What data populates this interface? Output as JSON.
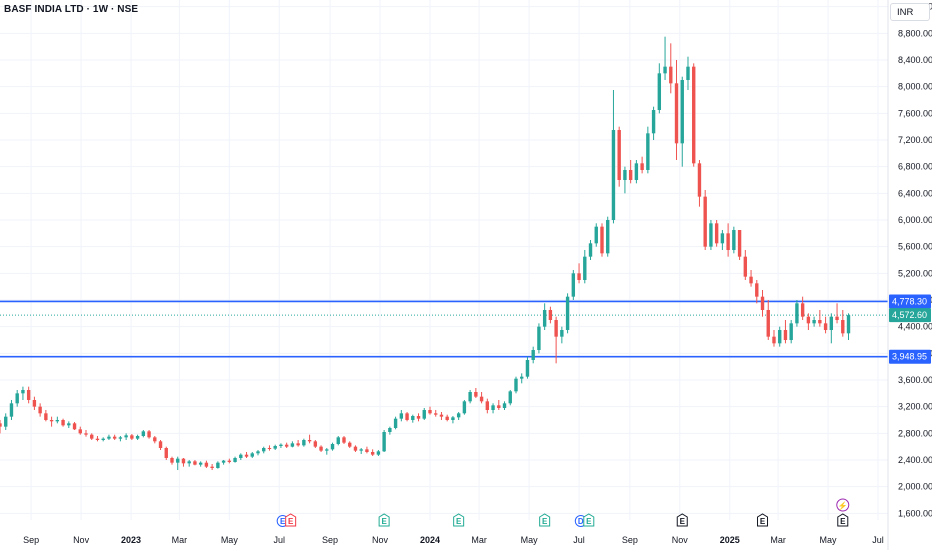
{
  "header": {
    "title": "BASF INDIA LTD · 1W · NSE",
    "currency": "INR"
  },
  "colors": {
    "up": "#26a69a",
    "down": "#ef5350",
    "hline": "#2962ff",
    "current": "#26a69a",
    "grid": "#f0f3fa",
    "text": "#131722"
  },
  "chart_data": {
    "type": "candlestick",
    "title": "BASF INDIA LTD · 1W · NSE",
    "ylim": [
      1500,
      9300
    ],
    "y_ticks": [
      "1,600.00",
      "2,000.00",
      "2,400.00",
      "2,800.00",
      "3,200.00",
      "3,600.00",
      "4,000.00",
      "4,400.00",
      "4,800.00",
      "5,200.00",
      "5,600.00",
      "6,000.00",
      "6,400.00",
      "6,800.00",
      "7,200.00",
      "7,600.00",
      "8,000.00",
      "8,400.00",
      "8,800.00",
      "9,200.00"
    ],
    "x_ticks": [
      {
        "label": "Sep",
        "date": "2022-09-01",
        "bold": false
      },
      {
        "label": "Nov",
        "date": "2022-11-01",
        "bold": false
      },
      {
        "label": "2023",
        "date": "2023-01-01",
        "bold": true
      },
      {
        "label": "Mar",
        "date": "2023-03-01",
        "bold": false
      },
      {
        "label": "May",
        "date": "2023-05-01",
        "bold": false
      },
      {
        "label": "Jul",
        "date": "2023-07-01",
        "bold": false
      },
      {
        "label": "Sep",
        "date": "2023-09-01",
        "bold": false
      },
      {
        "label": "Nov",
        "date": "2023-11-01",
        "bold": false
      },
      {
        "label": "2024",
        "date": "2024-01-01",
        "bold": true
      },
      {
        "label": "Mar",
        "date": "2024-03-01",
        "bold": false
      },
      {
        "label": "May",
        "date": "2024-05-01",
        "bold": false
      },
      {
        "label": "Jul",
        "date": "2024-07-01",
        "bold": false
      },
      {
        "label": "Sep",
        "date": "2024-09-01",
        "bold": false
      },
      {
        "label": "Nov",
        "date": "2024-11-01",
        "bold": false
      },
      {
        "label": "2025",
        "date": "2025-01-01",
        "bold": true
      },
      {
        "label": "Mar",
        "date": "2025-03-01",
        "bold": false
      },
      {
        "label": "May",
        "date": "2025-05-01",
        "bold": false
      },
      {
        "label": "Jul",
        "date": "2025-07-01",
        "bold": false
      }
    ],
    "horizontal_lines": [
      {
        "value": 4778.3,
        "label": "4,778.30"
      },
      {
        "value": 3948.95,
        "label": "3,948.95"
      }
    ],
    "current_price": {
      "value": 4572.6,
      "label": "4,572.60"
    },
    "events": [
      {
        "date": "2023-07-10",
        "symbols": [
          "E",
          "E"
        ],
        "type": "earnings"
      },
      {
        "date": "2023-11-06",
        "symbols": [
          "E"
        ],
        "type": "earnings"
      },
      {
        "date": "2024-02-05",
        "symbols": [
          "E"
        ],
        "type": "earnings"
      },
      {
        "date": "2024-05-20",
        "symbols": [
          "E"
        ],
        "type": "earnings"
      },
      {
        "date": "2024-07-08",
        "symbols": [
          "D",
          "E"
        ],
        "type": "dividend-earnings"
      },
      {
        "date": "2024-11-04",
        "symbols": [
          "E"
        ],
        "type": "earnings"
      },
      {
        "date": "2025-02-10",
        "symbols": [
          "E"
        ],
        "type": "earnings"
      },
      {
        "date": "2025-05-19",
        "symbols": [
          "E"
        ],
        "type": "earnings"
      },
      {
        "date": "2025-05-19",
        "symbols": [
          "⚡"
        ],
        "type": "split"
      }
    ],
    "candles": [
      [
        "2022-07-25",
        2950,
        3000,
        2800,
        2900
      ],
      [
        "2022-08-01",
        2900,
        3100,
        2850,
        3050
      ],
      [
        "2022-08-08",
        3050,
        3300,
        3000,
        3250
      ],
      [
        "2022-08-15",
        3250,
        3450,
        3200,
        3400
      ],
      [
        "2022-08-22",
        3400,
        3500,
        3300,
        3450
      ],
      [
        "2022-08-29",
        3450,
        3500,
        3250,
        3300
      ],
      [
        "2022-09-05",
        3300,
        3350,
        3150,
        3200
      ],
      [
        "2022-09-12",
        3200,
        3250,
        3050,
        3100
      ],
      [
        "2022-09-19",
        3100,
        3150,
        2980,
        3000
      ],
      [
        "2022-09-26",
        3000,
        3050,
        2900,
        2980
      ],
      [
        "2022-10-03",
        2980,
        3050,
        2950,
        3000
      ],
      [
        "2022-10-10",
        3000,
        3020,
        2900,
        2920
      ],
      [
        "2022-10-17",
        2920,
        2980,
        2880,
        2950
      ],
      [
        "2022-10-24",
        2950,
        2970,
        2850,
        2860
      ],
      [
        "2022-10-31",
        2860,
        2900,
        2780,
        2800
      ],
      [
        "2022-11-07",
        2800,
        2850,
        2750,
        2780
      ],
      [
        "2022-11-14",
        2780,
        2800,
        2700,
        2720
      ],
      [
        "2022-11-21",
        2720,
        2760,
        2680,
        2700
      ],
      [
        "2022-11-28",
        2700,
        2740,
        2680,
        2720
      ],
      [
        "2022-12-05",
        2720,
        2780,
        2700,
        2750
      ],
      [
        "2022-12-12",
        2750,
        2780,
        2700,
        2720
      ],
      [
        "2022-12-19",
        2720,
        2760,
        2680,
        2740
      ],
      [
        "2022-12-26",
        2740,
        2800,
        2700,
        2770
      ],
      [
        "2023-01-02",
        2770,
        2790,
        2700,
        2720
      ],
      [
        "2023-01-09",
        2720,
        2780,
        2700,
        2760
      ],
      [
        "2023-01-16",
        2760,
        2850,
        2740,
        2830
      ],
      [
        "2023-01-23",
        2830,
        2850,
        2720,
        2740
      ],
      [
        "2023-01-30",
        2740,
        2760,
        2650,
        2680
      ],
      [
        "2023-02-06",
        2680,
        2700,
        2550,
        2580
      ],
      [
        "2023-02-13",
        2580,
        2600,
        2400,
        2430
      ],
      [
        "2023-02-20",
        2430,
        2450,
        2330,
        2360
      ],
      [
        "2023-02-27",
        2360,
        2450,
        2250,
        2420
      ],
      [
        "2023-03-06",
        2420,
        2430,
        2300,
        2350
      ],
      [
        "2023-03-13",
        2350,
        2400,
        2300,
        2380
      ],
      [
        "2023-03-20",
        2380,
        2400,
        2320,
        2330
      ],
      [
        "2023-03-27",
        2330,
        2380,
        2300,
        2360
      ],
      [
        "2023-04-03",
        2360,
        2390,
        2280,
        2300
      ],
      [
        "2023-04-10",
        2300,
        2340,
        2250,
        2280
      ],
      [
        "2023-04-17",
        2280,
        2380,
        2270,
        2360
      ],
      [
        "2023-04-24",
        2360,
        2400,
        2330,
        2390
      ],
      [
        "2023-05-01",
        2390,
        2420,
        2350,
        2370
      ],
      [
        "2023-05-08",
        2370,
        2450,
        2360,
        2430
      ],
      [
        "2023-05-15",
        2430,
        2500,
        2400,
        2480
      ],
      [
        "2023-05-22",
        2480,
        2520,
        2430,
        2450
      ],
      [
        "2023-05-29",
        2450,
        2520,
        2430,
        2500
      ],
      [
        "2023-06-05",
        2500,
        2550,
        2470,
        2530
      ],
      [
        "2023-06-12",
        2530,
        2600,
        2500,
        2580
      ],
      [
        "2023-06-19",
        2580,
        2620,
        2540,
        2570
      ],
      [
        "2023-06-26",
        2570,
        2630,
        2550,
        2610
      ],
      [
        "2023-07-03",
        2610,
        2650,
        2580,
        2630
      ],
      [
        "2023-07-10",
        2630,
        2660,
        2580,
        2600
      ],
      [
        "2023-07-17",
        2600,
        2680,
        2590,
        2650
      ],
      [
        "2023-07-24",
        2650,
        2700,
        2600,
        2620
      ],
      [
        "2023-07-31",
        2620,
        2720,
        2600,
        2700
      ],
      [
        "2023-08-07",
        2700,
        2780,
        2650,
        2680
      ],
      [
        "2023-08-14",
        2680,
        2700,
        2580,
        2600
      ],
      [
        "2023-08-21",
        2600,
        2620,
        2520,
        2540
      ],
      [
        "2023-08-28",
        2540,
        2580,
        2480,
        2560
      ],
      [
        "2023-09-04",
        2560,
        2660,
        2540,
        2640
      ],
      [
        "2023-09-11",
        2640,
        2760,
        2620,
        2740
      ],
      [
        "2023-09-18",
        2740,
        2760,
        2640,
        2660
      ],
      [
        "2023-09-25",
        2660,
        2680,
        2580,
        2600
      ],
      [
        "2023-10-02",
        2600,
        2620,
        2520,
        2540
      ],
      [
        "2023-10-09",
        2540,
        2580,
        2490,
        2560
      ],
      [
        "2023-10-16",
        2560,
        2600,
        2500,
        2520
      ],
      [
        "2023-10-23",
        2520,
        2560,
        2460,
        2480
      ],
      [
        "2023-10-30",
        2480,
        2550,
        2460,
        2530
      ],
      [
        "2023-11-06",
        2530,
        2850,
        2520,
        2820
      ],
      [
        "2023-11-13",
        2820,
        2900,
        2780,
        2880
      ],
      [
        "2023-11-20",
        2880,
        3050,
        2860,
        3020
      ],
      [
        "2023-11-27",
        3020,
        3150,
        2980,
        3100
      ],
      [
        "2023-12-04",
        3100,
        3120,
        2980,
        3000
      ],
      [
        "2023-12-11",
        3000,
        3080,
        2960,
        3060
      ],
      [
        "2023-12-18",
        3060,
        3100,
        2980,
        3020
      ],
      [
        "2023-12-25",
        3020,
        3180,
        3000,
        3150
      ],
      [
        "2024-01-01",
        3150,
        3200,
        3080,
        3100
      ],
      [
        "2024-01-08",
        3100,
        3150,
        3050,
        3080
      ],
      [
        "2024-01-15",
        3080,
        3120,
        3000,
        3050
      ],
      [
        "2024-01-22",
        3050,
        3080,
        2980,
        3000
      ],
      [
        "2024-01-29",
        3000,
        3060,
        2950,
        3040
      ],
      [
        "2024-02-05",
        3040,
        3120,
        3000,
        3100
      ],
      [
        "2024-02-12",
        3100,
        3300,
        3080,
        3280
      ],
      [
        "2024-02-19",
        3280,
        3450,
        3250,
        3420
      ],
      [
        "2024-02-26",
        3420,
        3480,
        3330,
        3350
      ],
      [
        "2024-03-04",
        3350,
        3420,
        3250,
        3280
      ],
      [
        "2024-03-11",
        3280,
        3320,
        3100,
        3150
      ],
      [
        "2024-03-18",
        3150,
        3250,
        3100,
        3220
      ],
      [
        "2024-03-25",
        3220,
        3300,
        3150,
        3180
      ],
      [
        "2024-04-01",
        3180,
        3280,
        3150,
        3250
      ],
      [
        "2024-04-08",
        3250,
        3450,
        3220,
        3430
      ],
      [
        "2024-04-15",
        3430,
        3650,
        3400,
        3620
      ],
      [
        "2024-04-22",
        3620,
        3700,
        3550,
        3650
      ],
      [
        "2024-04-29",
        3650,
        3950,
        3620,
        3900
      ],
      [
        "2024-05-06",
        3900,
        4100,
        3850,
        4050
      ],
      [
        "2024-05-13",
        4050,
        4450,
        4000,
        4400
      ],
      [
        "2024-05-20",
        4400,
        4750,
        4350,
        4650
      ],
      [
        "2024-05-27",
        4650,
        4700,
        4450,
        4500
      ],
      [
        "2024-06-03",
        4500,
        4550,
        3850,
        4250
      ],
      [
        "2024-06-10",
        4250,
        4400,
        4150,
        4350
      ],
      [
        "2024-06-17",
        4350,
        4900,
        4300,
        4850
      ],
      [
        "2024-06-24",
        4850,
        5250,
        4800,
        5200
      ],
      [
        "2024-07-01",
        5200,
        5350,
        5050,
        5100
      ],
      [
        "2024-07-08",
        5100,
        5550,
        5050,
        5450
      ],
      [
        "2024-07-15",
        5450,
        5700,
        5400,
        5650
      ],
      [
        "2024-07-22",
        5650,
        5950,
        5600,
        5900
      ],
      [
        "2024-07-29",
        5900,
        5950,
        5450,
        5500
      ],
      [
        "2024-08-05",
        5500,
        6050,
        5450,
        6000
      ],
      [
        "2024-08-12",
        6000,
        7950,
        5950,
        7350
      ],
      [
        "2024-08-19",
        7350,
        7400,
        6500,
        6600
      ],
      [
        "2024-08-26",
        6600,
        6800,
        6400,
        6750
      ],
      [
        "2024-09-02",
        6750,
        6900,
        6550,
        6600
      ],
      [
        "2024-09-09",
        6600,
        6900,
        6550,
        6850
      ],
      [
        "2024-09-16",
        6850,
        6950,
        6700,
        6750
      ],
      [
        "2024-09-23",
        6750,
        7400,
        6700,
        7300
      ],
      [
        "2024-09-30",
        7300,
        7700,
        7200,
        7650
      ],
      [
        "2024-10-07",
        7650,
        8350,
        7600,
        8200
      ],
      [
        "2024-10-14",
        8200,
        8750,
        8100,
        8300
      ],
      [
        "2024-10-21",
        8300,
        8650,
        7900,
        8050
      ],
      [
        "2024-10-28",
        8050,
        8400,
        6900,
        7150
      ],
      [
        "2024-11-04",
        7150,
        8150,
        6800,
        8100
      ],
      [
        "2024-11-11",
        8100,
        8450,
        7950,
        8300
      ],
      [
        "2024-11-18",
        8300,
        8350,
        6800,
        6850
      ],
      [
        "2024-11-25",
        6850,
        6900,
        6200,
        6350
      ],
      [
        "2024-12-02",
        6350,
        6450,
        5550,
        5600
      ],
      [
        "2024-12-09",
        5600,
        6000,
        5550,
        5950
      ],
      [
        "2024-12-16",
        5950,
        6000,
        5600,
        5650
      ],
      [
        "2024-12-23",
        5650,
        5850,
        5550,
        5800
      ],
      [
        "2024-12-30",
        5800,
        5950,
        5450,
        5550
      ],
      [
        "2025-01-06",
        5550,
        5900,
        5500,
        5850
      ],
      [
        "2025-01-13",
        5850,
        5850,
        5400,
        5450
      ],
      [
        "2025-01-20",
        5450,
        5550,
        5100,
        5150
      ],
      [
        "2025-01-27",
        5150,
        5250,
        5000,
        5050
      ],
      [
        "2025-02-03",
        5050,
        5100,
        4750,
        4850
      ],
      [
        "2025-02-10",
        4850,
        4950,
        4550,
        4650
      ],
      [
        "2025-02-17",
        4650,
        4800,
        4200,
        4250
      ],
      [
        "2025-02-24",
        4250,
        4350,
        4100,
        4150
      ],
      [
        "2025-03-03",
        4150,
        4400,
        4100,
        4350
      ],
      [
        "2025-03-10",
        4350,
        4500,
        4150,
        4200
      ],
      [
        "2025-03-17",
        4200,
        4500,
        4150,
        4450
      ],
      [
        "2025-03-24",
        4450,
        4800,
        4400,
        4750
      ],
      [
        "2025-03-31",
        4750,
        4850,
        4500,
        4550
      ],
      [
        "2025-04-07",
        4550,
        4600,
        4350,
        4450
      ],
      [
        "2025-04-14",
        4450,
        4550,
        4400,
        4500
      ],
      [
        "2025-04-21",
        4500,
        4650,
        4400,
        4450
      ],
      [
        "2025-04-28",
        4450,
        4550,
        4300,
        4350
      ],
      [
        "2025-05-05",
        4350,
        4600,
        4150,
        4550
      ],
      [
        "2025-05-12",
        4550,
        4750,
        4450,
        4500
      ],
      [
        "2025-05-19",
        4500,
        4650,
        4250,
        4300
      ],
      [
        "2025-05-26",
        4300,
        4600,
        4200,
        4572.6
      ]
    ]
  }
}
